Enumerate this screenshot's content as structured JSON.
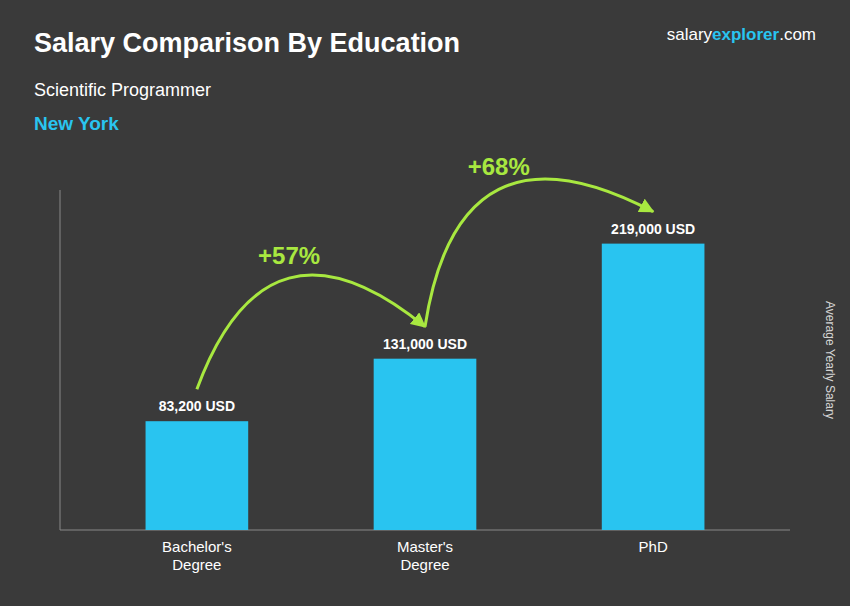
{
  "chart_data": {
    "type": "bar",
    "title": "Salary Comparison By Education",
    "subtitle": "Scientific Programmer",
    "location": "New York",
    "watermark": [
      "salary",
      "explorer",
      ".com"
    ],
    "ylabel": "Average Yearly Salary",
    "categories": [
      "Bachelor's\nDegree",
      "Master's\nDegree",
      "PhD"
    ],
    "values": [
      83200,
      131000,
      219000
    ],
    "value_labels": [
      "83,200 USD",
      "131,000 USD",
      "219,000 USD"
    ],
    "data_labels": true,
    "color": "#29c4f0",
    "annotations": [
      "+57%",
      "+68%"
    ],
    "ylim": [
      0,
      260000
    ],
    "tick_labels": "x",
    "grid": false
  }
}
